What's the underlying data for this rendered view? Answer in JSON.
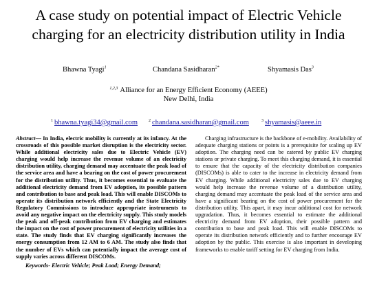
{
  "paper": {
    "title_line1": "A case study on potential impact of Electric Vehicle",
    "title_line2": "charging for an electricity distribution utility in India",
    "authors": [
      {
        "name": "Bhawna Tyagi",
        "sup": "1"
      },
      {
        "name": "Chandana Sasidharan",
        "sup": "2*"
      },
      {
        "name": "Shyamasis Das",
        "sup": "3"
      }
    ],
    "affiliation": {
      "sup": "1,2,3",
      "line1": "Alliance for an Energy Efficient Economy (AEEE)",
      "line2": "New Delhi, India"
    },
    "emails": [
      {
        "sup": "1",
        "address": "bhawna.tyagi34@gmail.com"
      },
      {
        "sup": "2",
        "address": "chandana.sasidharan@gmail.com"
      },
      {
        "sup": "3",
        "address": "shyamasis@aeee.in"
      }
    ],
    "abstract_label": "Abstract—",
    "abstract_text": " In India, electric mobility is currently at its infancy. At the crossroads of this possible market disruption is the electricity sector. While additional electricity sales due to Electric Vehicle (EV) charging would help increase the revenue volume of an electricity distribution utility, charging demand may accentuate the peak load of the service area and have a bearing on the cost of power procurement for the distribution utility. Thus, it becomes essential to evaluate the additional electricity demand from EV adoption, its possible pattern and contribution to base and peak load. This will enable DISCOMs to operate its distribution network efficiently and the State Electricity Regulatory Commissions to introduce appropriate instruments to avoid any negative impact on the electricity supply. This study models the peak and off-peak contribution from EV charging and estimates the impact on the cost of power procurement of electricity utilities in a state. The study finds that EV charging significantly increases the energy consumption from 12 AM to 6 AM. The study also finds that the number of EVs which can potentially impact the average cost of supply varies across different DISCOMs.",
    "keywords": "Keywords- Electric Vehicle; Peak Load; Energy Demand;",
    "body_paragraph": "Charging infrastructure is the backbone of e-mobility. Availability of adequate charging stations or points is a prerequisite for scaling up EV adoption. The charging need can be catered by public EV charging stations or private charging. To meet this charging demand, it is essential to ensure that the capacity of the electricity distribution companies (DISCOMs) is able to cater to the increase in electricity demand from EV charging. While additional electricity sales due to EV charging would help increase the revenue volume of a distribution utility, charging demand may accentuate the peak load of the service area and have a significant bearing on the cost of power procurement for the distribution utility. This apart, it may incur additional cost for network upgradation. Thus, it becomes essential to estimate the additional electricity demand from EV adoption, their possible pattern and contribution to base and peak load. This will enable DISCOMs to operate its distribution network efficiently and to further encourage EV adoption by the public. This exercise is also important in developing frameworks to enable tariff setting for EV charging from India."
  },
  "colors": {
    "link": "#1a1aa6"
  }
}
